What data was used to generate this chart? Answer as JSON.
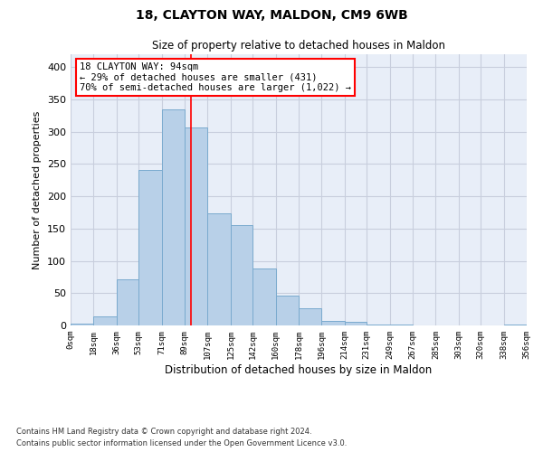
{
  "title": "18, CLAYTON WAY, MALDON, CM9 6WB",
  "subtitle": "Size of property relative to detached houses in Maldon",
  "xlabel": "Distribution of detached houses by size in Maldon",
  "ylabel": "Number of detached properties",
  "bar_color": "#b8d0e8",
  "bar_edge_color": "#7aaace",
  "background_color": "#e8eef8",
  "grid_color": "#c8cedd",
  "annotation_text": "18 CLAYTON WAY: 94sqm\n← 29% of detached houses are smaller (431)\n70% of semi-detached houses are larger (1,022) →",
  "vline_x": 94,
  "property_size": 94,
  "bin_edges": [
    0,
    18,
    36,
    53,
    71,
    89,
    107,
    125,
    142,
    160,
    178,
    196,
    214,
    231,
    249,
    267,
    285,
    303,
    320,
    338,
    356
  ],
  "bin_counts": [
    3,
    14,
    71,
    241,
    335,
    306,
    173,
    155,
    88,
    46,
    26,
    7,
    5,
    1,
    1,
    0,
    0,
    0,
    0,
    2
  ],
  "tick_labels": [
    "0sqm",
    "18sqm",
    "36sqm",
    "53sqm",
    "71sqm",
    "89sqm",
    "107sqm",
    "125sqm",
    "142sqm",
    "160sqm",
    "178sqm",
    "196sqm",
    "214sqm",
    "231sqm",
    "249sqm",
    "267sqm",
    "285sqm",
    "303sqm",
    "320sqm",
    "338sqm",
    "356sqm"
  ],
  "footer_line1": "Contains HM Land Registry data © Crown copyright and database right 2024.",
  "footer_line2": "Contains public sector information licensed under the Open Government Licence v3.0.",
  "ylim": [
    0,
    420
  ],
  "yticks": [
    0,
    50,
    100,
    150,
    200,
    250,
    300,
    350,
    400
  ]
}
